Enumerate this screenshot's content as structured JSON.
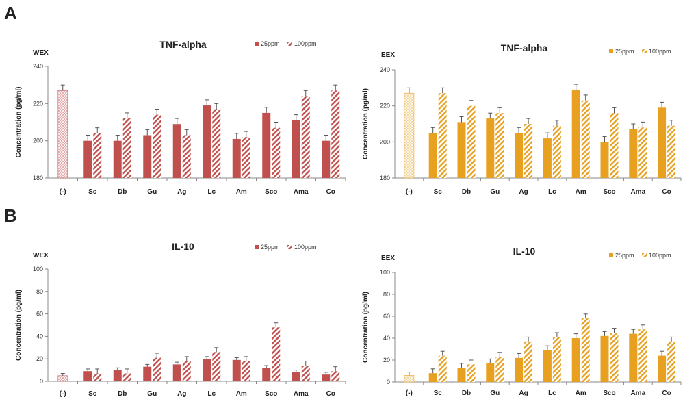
{
  "panel_labels": [
    "A",
    "B"
  ],
  "colors": {
    "red": "#c0504d",
    "orange": "#e8a020"
  },
  "chart_data": [
    {
      "type": "bar",
      "panel": "A",
      "corner_label": "WEX",
      "title": "TNF-alpha",
      "ylabel": "Concentration (pg/ml)",
      "ylim": [
        180,
        240
      ],
      "yticks": [
        180,
        200,
        220,
        240
      ],
      "color": "#c0504d",
      "categories": [
        "(-)",
        "Sc",
        "Db",
        "Gu",
        "Ag",
        "Lc",
        "Am",
        "Sco",
        "Ama",
        "Co"
      ],
      "control": {
        "value": 227,
        "error": 3
      },
      "series": [
        {
          "name": "25ppm",
          "pattern": "solid",
          "values": [
            null,
            200,
            200,
            203,
            209,
            219,
            201,
            215,
            211,
            200
          ],
          "errors": [
            null,
            3,
            3,
            3,
            3,
            3,
            3,
            3,
            3,
            3
          ]
        },
        {
          "name": "100ppm",
          "pattern": "hatched",
          "values": [
            null,
            204,
            212,
            214,
            203,
            217,
            202,
            207,
            224,
            227
          ],
          "errors": [
            null,
            3,
            3,
            3,
            3,
            3,
            3,
            3,
            3,
            3
          ]
        }
      ],
      "legend_position": "top-right"
    },
    {
      "type": "bar",
      "panel": "A",
      "corner_label": "EEX",
      "title": "TNF-alpha",
      "ylabel": "Concentration (pg/ml)",
      "ylim": [
        180,
        240
      ],
      "yticks": [
        180,
        200,
        220,
        240
      ],
      "color": "#e8a020",
      "categories": [
        "(-)",
        "Sc",
        "Db",
        "Gu",
        "Ag",
        "Lc",
        "Am",
        "Sco",
        "Ama",
        "Co"
      ],
      "control": {
        "value": 227,
        "error": 3
      },
      "series": [
        {
          "name": "25ppm",
          "pattern": "solid",
          "values": [
            null,
            205,
            211,
            213,
            205,
            202,
            229,
            200,
            207,
            219
          ],
          "errors": [
            null,
            3,
            3,
            3,
            3,
            3,
            3,
            3,
            3,
            3
          ]
        },
        {
          "name": "100ppm",
          "pattern": "hatched",
          "values": [
            null,
            227,
            220,
            216,
            210,
            209,
            223,
            216,
            208,
            209
          ],
          "errors": [
            null,
            3,
            3,
            3,
            3,
            3,
            3,
            3,
            3,
            3
          ]
        }
      ],
      "legend_position": "top-right"
    },
    {
      "type": "bar",
      "panel": "B",
      "corner_label": "WEX",
      "title": "IL-10",
      "ylabel": "Concentration (pg/ml)",
      "ylim": [
        0,
        100
      ],
      "yticks": [
        0,
        20,
        40,
        60,
        80,
        100
      ],
      "color": "#c0504d",
      "categories": [
        "(-)",
        "Sc",
        "Db",
        "Gu",
        "Ag",
        "Lc",
        "Am",
        "Sco",
        "Ama",
        "Co"
      ],
      "control": {
        "value": 5,
        "error": 2
      },
      "series": [
        {
          "name": "25ppm",
          "pattern": "solid",
          "values": [
            null,
            9,
            10,
            13,
            15,
            20,
            19,
            12,
            8,
            6
          ],
          "errors": [
            null,
            2,
            2,
            2,
            2,
            2,
            2,
            2,
            2,
            2
          ]
        },
        {
          "name": "100ppm",
          "pattern": "hatched",
          "values": [
            null,
            7,
            7,
            21,
            18,
            26,
            18,
            48,
            14,
            9
          ],
          "errors": [
            null,
            4,
            4,
            4,
            4,
            4,
            4,
            4,
            4,
            4
          ]
        }
      ],
      "legend_position": "top-right"
    },
    {
      "type": "bar",
      "panel": "B",
      "corner_label": "EEX",
      "title": "IL-10",
      "ylabel": "Concentration (pg/ml)",
      "ylim": [
        0,
        100
      ],
      "yticks": [
        0,
        20,
        40,
        60,
        80,
        100
      ],
      "color": "#e8a020",
      "categories": [
        "(-)",
        "Sc",
        "Db",
        "Gu",
        "Ag",
        "Lc",
        "Am",
        "Sco",
        "Ama",
        "Co"
      ],
      "control": {
        "value": 6,
        "error": 3
      },
      "series": [
        {
          "name": "25ppm",
          "pattern": "solid",
          "values": [
            null,
            8,
            13,
            17,
            22,
            29,
            40,
            42,
            44,
            24
          ],
          "errors": [
            null,
            4,
            4,
            4,
            4,
            4,
            4,
            4,
            4,
            4
          ]
        },
        {
          "name": "100ppm",
          "pattern": "hatched",
          "values": [
            null,
            24,
            16,
            23,
            37,
            41,
            58,
            45,
            48,
            37
          ],
          "errors": [
            null,
            4,
            4,
            4,
            4,
            4,
            4,
            4,
            4,
            4
          ]
        }
      ],
      "legend_position": "top-right"
    }
  ]
}
